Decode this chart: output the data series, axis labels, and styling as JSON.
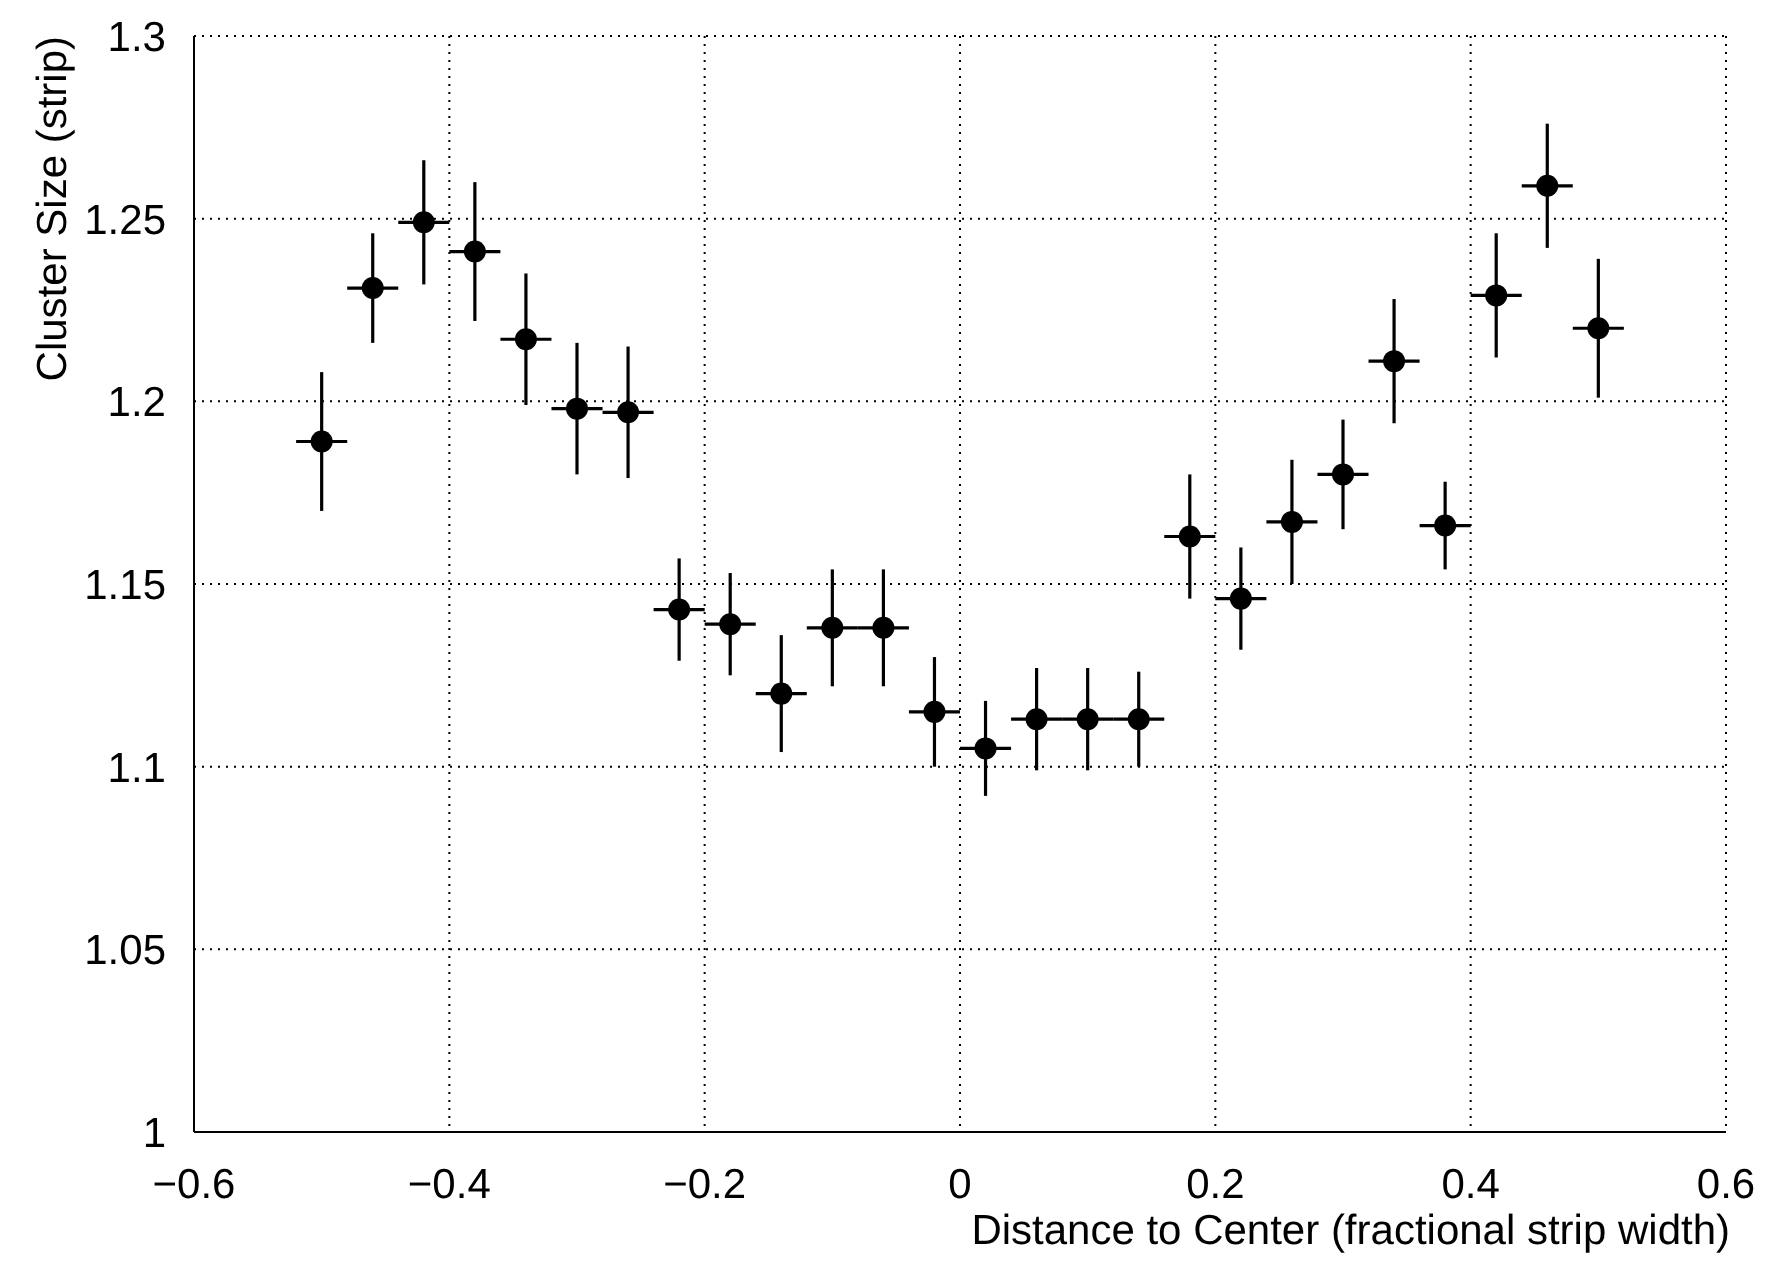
{
  "chart_data": {
    "type": "scatter",
    "xlabel": "Distance to Center (fractional strip width)",
    "ylabel": "Cluster Size (strip)",
    "x": [
      -0.5,
      -0.46,
      -0.42,
      -0.38,
      -0.34,
      -0.3,
      -0.26,
      -0.22,
      -0.18,
      -0.14,
      -0.1,
      -0.06,
      -0.02,
      0.02,
      0.06,
      0.1,
      0.14,
      0.18,
      0.22,
      0.26,
      0.3,
      0.34,
      0.38,
      0.42,
      0.46,
      0.5
    ],
    "series": [
      {
        "color": "#000000",
        "values": [
          1.189,
          1.231,
          1.249,
          1.241,
          1.217,
          1.198,
          1.197,
          1.143,
          1.139,
          1.12,
          1.138,
          1.138,
          1.115,
          1.105,
          1.113,
          1.113,
          1.113,
          1.163,
          1.146,
          1.167,
          1.18,
          1.211,
          1.166,
          1.229,
          1.259,
          1.22
        ],
        "errors": [
          0.019,
          0.015,
          0.017,
          0.019,
          0.018,
          0.018,
          0.018,
          0.014,
          0.014,
          0.016,
          0.016,
          0.016,
          0.015,
          0.013,
          0.014,
          0.014,
          0.013,
          0.017,
          0.014,
          0.017,
          0.015,
          0.017,
          0.012,
          0.017,
          0.017,
          0.019
        ],
        "xerrors": [
          0.02,
          0.02,
          0.02,
          0.02,
          0.02,
          0.02,
          0.02,
          0.02,
          0.02,
          0.02,
          0.02,
          0.02,
          0.02,
          0.02,
          0.02,
          0.02,
          0.02,
          0.02,
          0.02,
          0.02,
          0.02,
          0.02,
          0.02,
          0.02,
          0.02,
          0.02
        ]
      }
    ],
    "xlim": [
      -0.6,
      0.6
    ],
    "xticks": [
      {
        "value": -0.6,
        "label": "−0.6"
      },
      {
        "value": -0.4,
        "label": "−0.4"
      },
      {
        "value": -0.2,
        "label": "−0.2"
      },
      0,
      0.2,
      0.4,
      0.6
    ],
    "ylim": [
      1,
      1.3
    ],
    "yticks": [
      1,
      1.05,
      1.1,
      1.15,
      1.2,
      1.25,
      1.3
    ],
    "grid": true,
    "marker": "circle"
  }
}
